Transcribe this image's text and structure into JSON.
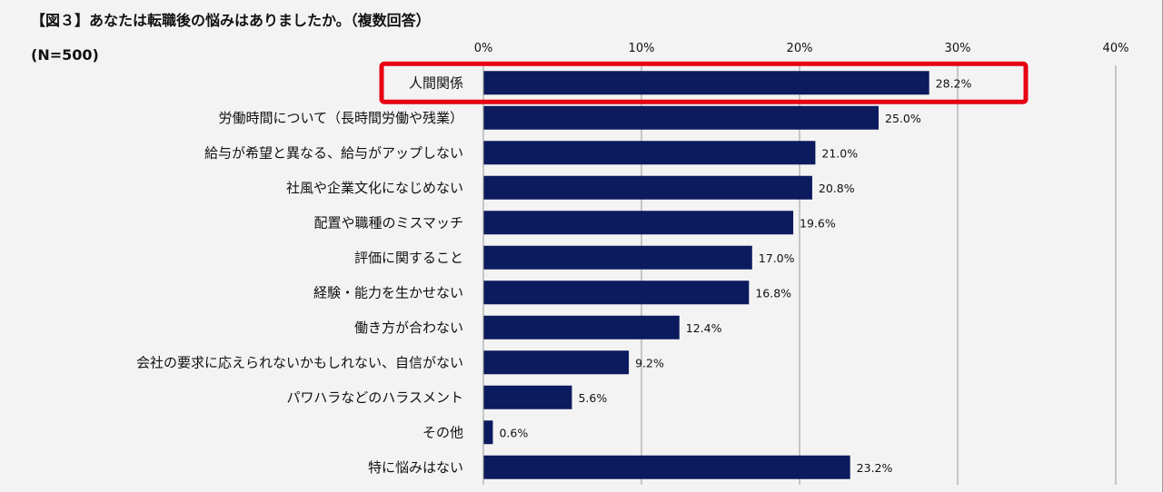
{
  "header": {
    "title": "【図３】あなたは転職後の悩みはありましたか。（複数回答）",
    "sample": "(N=500)"
  },
  "chart_data": {
    "type": "bar",
    "orientation": "horizontal",
    "title": "【図３】あなたは転職後の悩みはありましたか。（複数回答）",
    "xlim": [
      0,
      40
    ],
    "ticks": [
      0,
      10,
      20,
      30,
      40
    ],
    "tick_suffix": "%",
    "grid": true,
    "categories": [
      "人間関係",
      "労働時間について（長時間労働や残業）",
      "給与が希望と異なる、給与がアップしない",
      "社風や企業文化になじめない",
      "配置や職種のミスマッチ",
      "評価に関すること",
      "経験・能力を生かせない",
      "働き方が合わない",
      "会社の要求に応えられないかもしれない、自信がない",
      "パワハラなどのハラスメント",
      "その他",
      "特に悩みはない"
    ],
    "values": [
      28.2,
      25.0,
      21.0,
      20.8,
      19.6,
      17.0,
      16.8,
      12.4,
      9.2,
      5.6,
      0.6,
      23.2
    ],
    "value_labels": [
      "28.2%",
      "25.0%",
      "21.0%",
      "20.8%",
      "19.6%",
      "17.0%",
      "16.8%",
      "12.4%",
      "9.2%",
      "5.6%",
      "0.6%",
      "23.2%"
    ],
    "highlighted_category": "人間関係",
    "colors": {
      "bar": "#0c1a5e",
      "grid": "#9a9a9a",
      "highlight": "#e60012"
    }
  }
}
